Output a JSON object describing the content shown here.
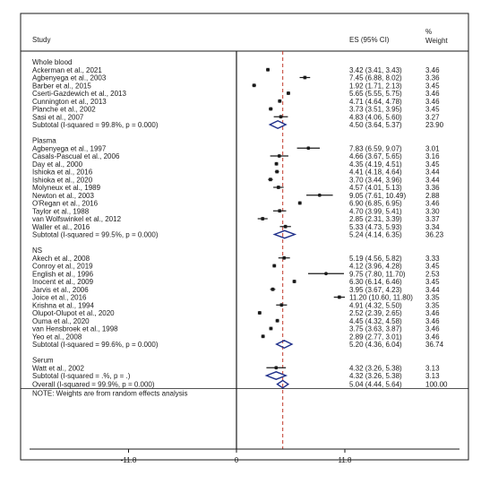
{
  "chart_data": {
    "type": "forest",
    "headers": {
      "study": "Study",
      "es": "ES (95% CI)",
      "weight_line1": "%",
      "weight_line2": "Weight"
    },
    "x_axis": {
      "ticks": [
        "-11.8",
        "0",
        "11.8"
      ],
      "range": [
        -11.8,
        11.8
      ]
    },
    "overall_line": 5.04,
    "groups": [
      {
        "name": "Whole blood",
        "studies": [
          {
            "study": "Ackerman et al., 2021",
            "es": 3.42,
            "lo": 3.41,
            "hi": 3.43,
            "es_text": "3.42 (3.41, 3.43)",
            "weight": "3.46"
          },
          {
            "study": "Agbenyega et al., 2003",
            "es": 7.45,
            "lo": 6.88,
            "hi": 8.02,
            "es_text": "7.45 (6.88, 8.02)",
            "weight": "3.36"
          },
          {
            "study": "Barber et al., 2015",
            "es": 1.92,
            "lo": 1.71,
            "hi": 2.13,
            "es_text": "1.92 (1.71, 2.13)",
            "weight": "3.45"
          },
          {
            "study": "Cserti-Gazdewich et al., 2013",
            "es": 5.65,
            "lo": 5.55,
            "hi": 5.75,
            "es_text": "5.65 (5.55, 5.75)",
            "weight": "3.46"
          },
          {
            "study": "Cunnington et al., 2013",
            "es": 4.71,
            "lo": 4.64,
            "hi": 4.78,
            "es_text": "4.71 (4.64, 4.78)",
            "weight": "3.46"
          },
          {
            "study": "Planche et al., 2002",
            "es": 3.73,
            "lo": 3.51,
            "hi": 3.95,
            "es_text": "3.73 (3.51, 3.95)",
            "weight": "3.45"
          },
          {
            "study": "Sasi et al., 2007",
            "es": 4.83,
            "lo": 4.06,
            "hi": 5.6,
            "es_text": "4.83 (4.06, 5.60)",
            "weight": "3.27"
          }
        ],
        "subtotal": {
          "label": "Subtotal  (I-squared = 99.8%, p = 0.000)",
          "es": 4.5,
          "lo": 3.64,
          "hi": 5.37,
          "es_text": "4.50 (3.64, 5.37)",
          "weight": "23.90"
        }
      },
      {
        "name": "Plasma",
        "studies": [
          {
            "study": "Agbenyega et al., 1997",
            "es": 7.83,
            "lo": 6.59,
            "hi": 9.07,
            "es_text": "7.83 (6.59, 9.07)",
            "weight": "3.01"
          },
          {
            "study": "Casals-Pascual et al., 2006",
            "es": 4.66,
            "lo": 3.67,
            "hi": 5.65,
            "es_text": "4.66 (3.67, 5.65)",
            "weight": "3.16"
          },
          {
            "study": "Day et al., 2000",
            "es": 4.35,
            "lo": 4.19,
            "hi": 4.51,
            "es_text": "4.35 (4.19, 4.51)",
            "weight": "3.45"
          },
          {
            "study": "Ishioka et al., 2016",
            "es": 4.41,
            "lo": 4.18,
            "hi": 4.64,
            "es_text": "4.41 (4.18, 4.64)",
            "weight": "3.44"
          },
          {
            "study": "Ishioka et al., 2020",
            "es": 3.7,
            "lo": 3.44,
            "hi": 3.96,
            "es_text": "3.70 (3.44, 3.96)",
            "weight": "3.44"
          },
          {
            "study": "Molyneux et al., 1989",
            "es": 4.57,
            "lo": 4.01,
            "hi": 5.13,
            "es_text": "4.57 (4.01, 5.13)",
            "weight": "3.36"
          },
          {
            "study": "Newton et al., 2003",
            "es": 9.05,
            "lo": 7.61,
            "hi": 10.49,
            "es_text": "9.05 (7.61, 10.49)",
            "weight": "2.88"
          },
          {
            "study": "O'Regan et al., 2016",
            "es": 6.9,
            "lo": 6.85,
            "hi": 6.95,
            "es_text": "6.90 (6.85, 6.95)",
            "weight": "3.46"
          },
          {
            "study": "Taylor et al., 1988",
            "es": 4.7,
            "lo": 3.99,
            "hi": 5.41,
            "es_text": "4.70 (3.99, 5.41)",
            "weight": "3.30"
          },
          {
            "study": "van Wolfswinkel et al., 2012",
            "es": 2.85,
            "lo": 2.31,
            "hi": 3.39,
            "es_text": "2.85 (2.31, 3.39)",
            "weight": "3.37"
          },
          {
            "study": "Waller et al., 2016",
            "es": 5.33,
            "lo": 4.73,
            "hi": 5.93,
            "es_text": "5.33 (4.73, 5.93)",
            "weight": "3.34"
          }
        ],
        "subtotal": {
          "label": "Subtotal  (I-squared = 99.5%, p = 0.000)",
          "es": 5.24,
          "lo": 4.14,
          "hi": 6.35,
          "es_text": "5.24 (4.14, 6.35)",
          "weight": "36.23"
        }
      },
      {
        "name": "NS",
        "studies": [
          {
            "study": "Akech et al., 2008",
            "es": 5.19,
            "lo": 4.56,
            "hi": 5.82,
            "es_text": "5.19 (4.56, 5.82)",
            "weight": "3.33"
          },
          {
            "study": "Conroy et al., 2019",
            "es": 4.12,
            "lo": 3.96,
            "hi": 4.28,
            "es_text": "4.12 (3.96, 4.28)",
            "weight": "3.45"
          },
          {
            "study": "English et al., 1996",
            "es": 9.75,
            "lo": 7.8,
            "hi": 11.7,
            "es_text": "9.75 (7.80, 11.70)",
            "weight": "2.53"
          },
          {
            "study": "Inocent et al., 2009",
            "es": 6.3,
            "lo": 6.14,
            "hi": 6.46,
            "es_text": "6.30 (6.14, 6.46)",
            "weight": "3.45"
          },
          {
            "study": "Jarvis et al., 2006",
            "es": 3.95,
            "lo": 3.67,
            "hi": 4.23,
            "es_text": "3.95 (3.67, 4.23)",
            "weight": "3.44"
          },
          {
            "study": "Joice et al., 2016",
            "es": 11.2,
            "lo": 10.6,
            "hi": 11.8,
            "es_text": "11.20 (10.60, 11.80)",
            "weight": "3.35"
          },
          {
            "study": "Krishna et al., 1994",
            "es": 4.91,
            "lo": 4.32,
            "hi": 5.5,
            "es_text": "4.91 (4.32, 5.50)",
            "weight": "3.35"
          },
          {
            "study": "Olupot-Olupot et al., 2020",
            "es": 2.52,
            "lo": 2.39,
            "hi": 2.65,
            "es_text": "2.52 (2.39, 2.65)",
            "weight": "3.46"
          },
          {
            "study": "Ouma et al., 2020",
            "es": 4.45,
            "lo": 4.32,
            "hi": 4.58,
            "es_text": "4.45 (4.32, 4.58)",
            "weight": "3.46"
          },
          {
            "study": "van Hensbroek et al., 1998",
            "es": 3.75,
            "lo": 3.63,
            "hi": 3.87,
            "es_text": "3.75 (3.63, 3.87)",
            "weight": "3.46"
          },
          {
            "study": "Yeo et al., 2008",
            "es": 2.89,
            "lo": 2.77,
            "hi": 3.01,
            "es_text": "2.89 (2.77, 3.01)",
            "weight": "3.46"
          }
        ],
        "subtotal": {
          "label": "Subtotal  (I-squared = 99.6%, p = 0.000)",
          "es": 5.2,
          "lo": 4.36,
          "hi": 6.04,
          "es_text": "5.20 (4.36, 6.04)",
          "weight": "36.74"
        }
      },
      {
        "name": "Serum",
        "studies": [
          {
            "study": "Watt et al., 2002",
            "es": 4.32,
            "lo": 3.26,
            "hi": 5.38,
            "es_text": "4.32 (3.26, 5.38)",
            "weight": "3.13"
          }
        ],
        "subtotal": {
          "label": "Subtotal  (I-squared = .%, p = .)",
          "es": 4.32,
          "lo": 3.26,
          "hi": 5.38,
          "es_text": "4.32 (3.26, 5.38)",
          "weight": "3.13"
        }
      }
    ],
    "overall": {
      "label": "Overall  (I-squared = 99.9%, p = 0.000)",
      "es": 5.04,
      "lo": 4.44,
      "hi": 5.64,
      "es_text": "5.04 (4.44, 5.64)",
      "weight": "100.00"
    },
    "note": "NOTE: Weights are from random effects analysis",
    "colors": {
      "axis": "#1a1a1a",
      "overall_line": "#c0392b",
      "diamond": "#1f2f8a",
      "marker": "#1a1a1a",
      "box": "#7a7a7a"
    }
  }
}
